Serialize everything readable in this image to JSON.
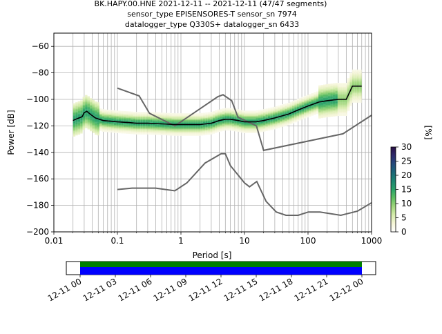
{
  "chart_data": {
    "type": "heatmap",
    "title_lines": [
      "BK.HAPY.00.HNE   2021-12-11 -- 2021-12-11  (47/47 segments)",
      "sensor_type EPISENSORES-T sensor_sn 7974",
      "datalogger_type Q330S+ datalogger_sn 6433"
    ],
    "xlabel": "Period [s]",
    "ylabel": "Power [dB]",
    "x_scale": "log",
    "xlim": [
      0.01,
      1000
    ],
    "ylim": [
      -200,
      -50
    ],
    "x_ticks": [
      {
        "value": 0.01,
        "label": "0.01"
      },
      {
        "value": 0.1,
        "label": "0.1"
      },
      {
        "value": 1,
        "label": "1"
      },
      {
        "value": 10,
        "label": "10"
      },
      {
        "value": 100,
        "label": "100"
      },
      {
        "value": 1000,
        "label": "1000"
      }
    ],
    "y_ticks": [
      {
        "value": -60,
        "label": "−60"
      },
      {
        "value": -80,
        "label": "−80"
      },
      {
        "value": -100,
        "label": "−100"
      },
      {
        "value": -120,
        "label": "−120"
      },
      {
        "value": -140,
        "label": "−140"
      },
      {
        "value": -160,
        "label": "−160"
      },
      {
        "value": -180,
        "label": "−180"
      },
      {
        "value": -200,
        "label": "−200"
      }
    ],
    "grid": true,
    "colorbar": {
      "label": "[%]",
      "min": 0,
      "max": 30,
      "ticks": [
        {
          "value": 0,
          "label": "0"
        },
        {
          "value": 5,
          "label": "5"
        },
        {
          "value": 10,
          "label": "10"
        },
        {
          "value": 15,
          "label": "15"
        },
        {
          "value": 20,
          "label": "20"
        },
        {
          "value": 25,
          "label": "25"
        },
        {
          "value": 30,
          "label": "30"
        }
      ],
      "colors": [
        "#ffffff",
        "#f5f5d6",
        "#d6ecac",
        "#9fd67c",
        "#5ebf62",
        "#2aa36a",
        "#1d8672",
        "#1b6878",
        "#244a7c",
        "#2e2a6c",
        "#2a0f45"
      ]
    },
    "mode_curve": {
      "periods": [
        0.02,
        0.022,
        0.025,
        0.028,
        0.03,
        0.033,
        0.037,
        0.045,
        0.06,
        0.08,
        0.1,
        0.15,
        0.2,
        0.3,
        0.5,
        0.8,
        1,
        2,
        3,
        4,
        5,
        6,
        8,
        10,
        15,
        20,
        30,
        50,
        70,
        100,
        150,
        200,
        300,
        350,
        400,
        500,
        600,
        700
      ],
      "power": [
        -116,
        -115,
        -114,
        -113,
        -110,
        -109,
        -111,
        -114,
        -116,
        -116.5,
        -117,
        -117.5,
        -118,
        -118,
        -118.5,
        -119,
        -119,
        -119,
        -118,
        -116,
        -115,
        -115,
        -116,
        -117,
        -117,
        -116,
        -114,
        -111,
        -108,
        -105,
        -102,
        -101,
        -100,
        -100,
        -100,
        -90,
        -90,
        -90
      ]
    },
    "noise_models": [
      {
        "periods": [
          0.1,
          0.17,
          0.4,
          0.8,
          1.24,
          2.4,
          4.3,
          5,
          6,
          10,
          12,
          15.6,
          21.9,
          31.6,
          45,
          70,
          101,
          154,
          328,
          600,
          1000
        ],
        "power": [
          -168,
          -167,
          -167,
          -169,
          -163,
          -148,
          -141,
          -141,
          -150,
          -163,
          -166,
          -162,
          -177,
          -185,
          -187.5,
          -187.5,
          -185,
          -185,
          -187.5,
          -184.4,
          -178
        ]
      },
      {
        "periods": [
          0.1,
          0.22,
          0.32,
          0.8,
          3.8,
          4.6,
          6.3,
          7.9,
          15.4,
          20,
          354.8,
          1000
        ],
        "power": [
          -91.5,
          -97.4,
          -110.5,
          -120,
          -98,
          -96.5,
          -101,
          -113.5,
          -120,
          -138.5,
          -126,
          -112
        ]
      }
    ]
  },
  "timeline": {
    "x_ticks": [
      {
        "label": "12-11 00"
      },
      {
        "label": "12-11 03"
      },
      {
        "label": "12-11 06"
      },
      {
        "label": "12-11 09"
      },
      {
        "label": "12-11 12"
      },
      {
        "label": "12-11 15"
      },
      {
        "label": "12-11 18"
      },
      {
        "label": "12-11 21"
      },
      {
        "label": "12-12 00"
      }
    ],
    "bar_colors": {
      "top": "#008000",
      "bottom": "#0000ff"
    }
  }
}
